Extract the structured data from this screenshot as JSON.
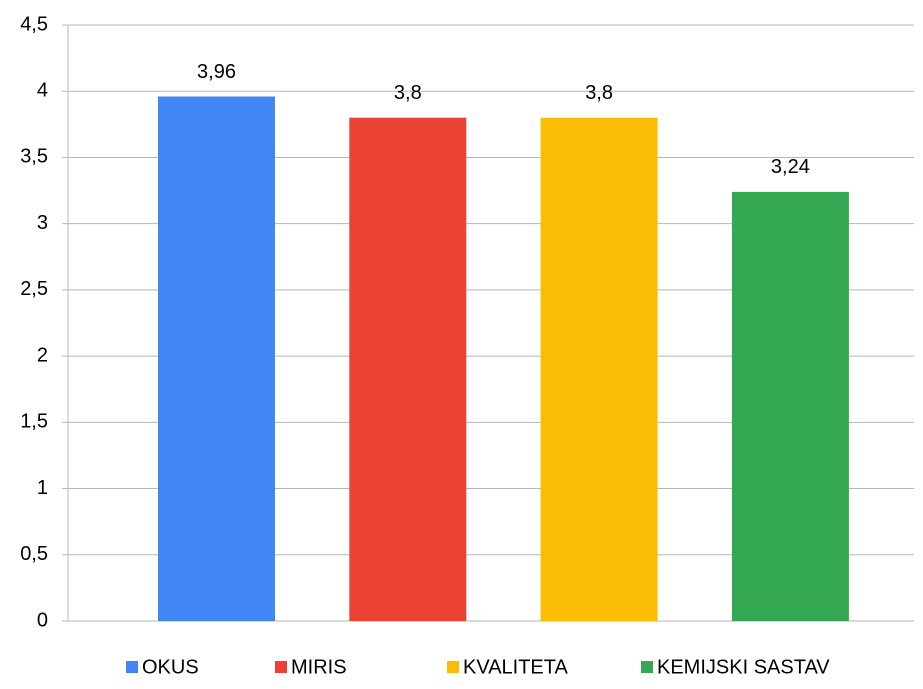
{
  "chart_data": {
    "type": "bar",
    "categories": [
      null
    ],
    "series": [
      {
        "name": "OKUS",
        "color": "#4285f4",
        "values": [
          3.96
        ],
        "value_labels": [
          "3,96"
        ]
      },
      {
        "name": "MIRIS",
        "color": "#ea4335",
        "values": [
          3.8
        ],
        "value_labels": [
          "3,8"
        ]
      },
      {
        "name": "KVALITETA",
        "color": "#fbbc04",
        "values": [
          3.8
        ],
        "value_labels": [
          "3,8"
        ]
      },
      {
        "name": "KEMIJSKI SASTAV",
        "color": "#34a853",
        "values": [
          3.24
        ],
        "value_labels": [
          "3,24"
        ]
      }
    ],
    "ylim": [
      0,
      4.5
    ],
    "yticks": [
      0,
      {
        "value": 0.5,
        "label": "0,5"
      },
      1,
      {
        "value": 1.5,
        "label": "1,5"
      },
      2,
      {
        "value": 2.5,
        "label": "2,5"
      },
      3,
      {
        "value": 3.5,
        "label": "3,5"
      },
      4,
      {
        "value": 4.5,
        "label": "4,5"
      }
    ],
    "grid": true,
    "legend": "bottom"
  }
}
